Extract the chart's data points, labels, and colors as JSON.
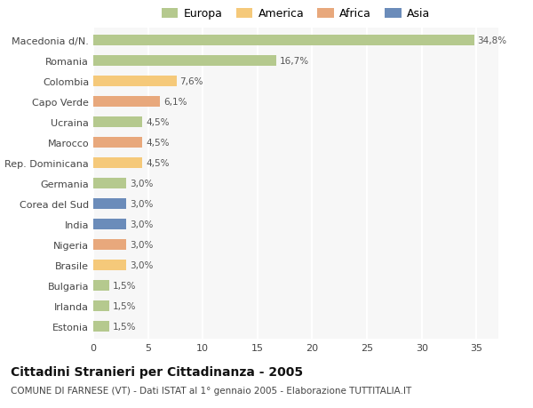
{
  "title": "Cittadini Stranieri per Cittadinanza - 2005",
  "subtitle": "COMUNE DI FARNESE (VT) - Dati ISTAT al 1° gennaio 2005 - Elaborazione TUTTITALIA.IT",
  "categories": [
    "Macedonia d/N.",
    "Romania",
    "Colombia",
    "Capo Verde",
    "Ucraina",
    "Marocco",
    "Rep. Dominicana",
    "Germania",
    "Corea del Sud",
    "India",
    "Nigeria",
    "Brasile",
    "Bulgaria",
    "Irlanda",
    "Estonia"
  ],
  "values": [
    34.8,
    16.7,
    7.6,
    6.1,
    4.5,
    4.5,
    4.5,
    3.0,
    3.0,
    3.0,
    3.0,
    3.0,
    1.5,
    1.5,
    1.5
  ],
  "labels": [
    "34,8%",
    "16,7%",
    "7,6%",
    "6,1%",
    "4,5%",
    "4,5%",
    "4,5%",
    "3,0%",
    "3,0%",
    "3,0%",
    "3,0%",
    "3,0%",
    "1,5%",
    "1,5%",
    "1,5%"
  ],
  "colors": [
    "#b5c98e",
    "#b5c98e",
    "#f5c97a",
    "#e8a87c",
    "#b5c98e",
    "#e8a87c",
    "#f5c97a",
    "#b5c98e",
    "#6b8cba",
    "#6b8cba",
    "#e8a87c",
    "#f5c97a",
    "#b5c98e",
    "#b5c98e",
    "#b5c98e"
  ],
  "legend_colors": {
    "Europa": "#b5c98e",
    "America": "#f5c97a",
    "Africa": "#e8a87c",
    "Asia": "#6b8cba"
  },
  "xlim": [
    0,
    37
  ],
  "xticks": [
    0,
    5,
    10,
    15,
    20,
    25,
    30,
    35
  ],
  "background_color": "#ffffff",
  "plot_bg_color": "#f7f7f7",
  "grid_color": "#ffffff",
  "title_fontsize": 10,
  "subtitle_fontsize": 7.5,
  "label_fontsize": 7.5,
  "tick_fontsize": 8,
  "legend_fontsize": 9,
  "bar_height": 0.55
}
